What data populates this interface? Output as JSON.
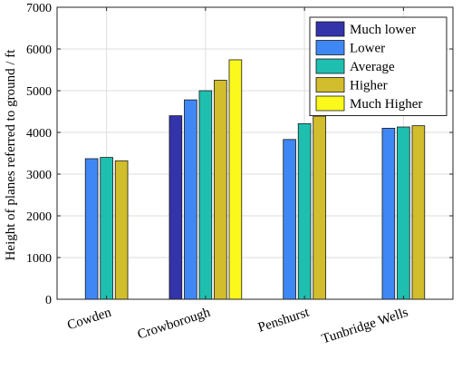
{
  "chart_data": {
    "type": "bar",
    "title": "",
    "xlabel": "",
    "ylabel": "Height of planes referred to ground / ft",
    "ylim": [
      0,
      7000
    ],
    "yticks": [
      0,
      1000,
      2000,
      3000,
      4000,
      5000,
      6000,
      7000
    ],
    "grid": true,
    "legend_position": "top-right",
    "categories": [
      "Cowden",
      "Crowborough",
      "Penshurst",
      "Tunbridge Wells"
    ],
    "series": [
      {
        "name": "Much lower",
        "color": "#3333aa",
        "values": [
          null,
          4400,
          null,
          null
        ]
      },
      {
        "name": "Lower",
        "color": "#3f87f5",
        "values": [
          3370,
          4780,
          3830,
          4100
        ]
      },
      {
        "name": "Average",
        "color": "#1fbfb0",
        "values": [
          3400,
          5000,
          4210,
          4130
        ]
      },
      {
        "name": "Higher",
        "color": "#d2bd2c",
        "values": [
          3320,
          5250,
          4390,
          4160
        ]
      },
      {
        "name": "Much Higher",
        "color": "#fbf81c",
        "values": [
          null,
          5740,
          null,
          null
        ]
      }
    ]
  }
}
